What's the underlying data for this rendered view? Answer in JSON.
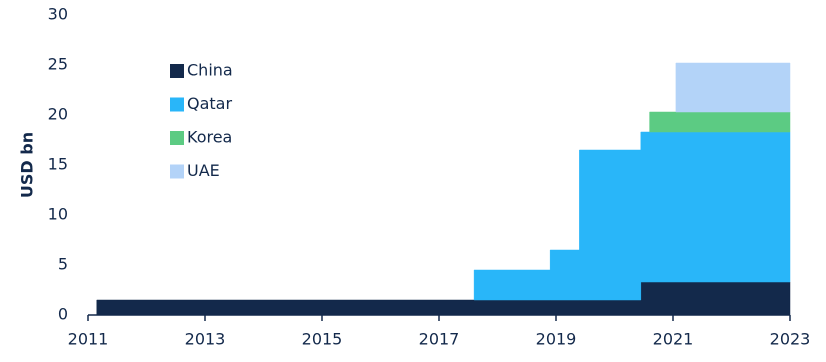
{
  "chart_data": {
    "type": "step-area",
    "y_label": "USD bn",
    "x": [
      2011.15,
      2017.6,
      2018.9,
      2019.4,
      2020.45,
      2020.6,
      2021.05,
      2023
    ],
    "series": [
      {
        "name": "China",
        "color": "#13294b",
        "values": [
          1.5,
          1.5,
          1.5,
          1.5,
          3.3,
          3.3,
          3.3,
          3.3
        ]
      },
      {
        "name": "Qatar",
        "color": "#29b6f9",
        "values": [
          null,
          3.0,
          5.0,
          15.0,
          15.0,
          15.0,
          15.0,
          15.0
        ]
      },
      {
        "name": "Korea",
        "color": "#5ccb83",
        "values": [
          null,
          null,
          null,
          null,
          null,
          2.0,
          2.0,
          2.0
        ]
      },
      {
        "name": "UAE",
        "color": "#b3d3f8",
        "values": [
          null,
          null,
          null,
          null,
          null,
          null,
          4.9,
          4.9
        ]
      }
    ],
    "xlim": [
      2011,
      2023
    ],
    "xticks": [
      2011,
      2013,
      2015,
      2017,
      2019,
      2021,
      2023
    ],
    "ylim": [
      0,
      30
    ],
    "yticks": [
      0,
      5,
      10,
      15,
      20,
      25,
      30
    ],
    "grid": false,
    "legend": "upper left"
  }
}
